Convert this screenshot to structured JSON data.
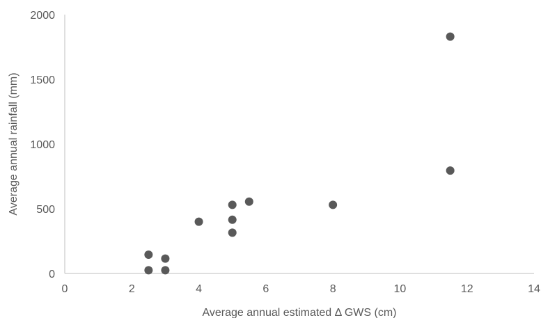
{
  "chart_data": {
    "type": "scatter",
    "title": "",
    "xlabel": "Average annual estimated Δ GWS (cm)",
    "ylabel": "Average annual rainfall (mm)",
    "xlim": [
      0,
      14
    ],
    "ylim": [
      0,
      2000
    ],
    "x_ticks": [
      "0",
      "2",
      "4",
      "6",
      "8",
      "10",
      "12",
      "14"
    ],
    "y_ticks": [
      "0",
      "500",
      "1000",
      "1500",
      "2000"
    ],
    "grid": false,
    "legend": "none",
    "point_color": "#595959",
    "points": [
      {
        "x": 2.5,
        "y": 145
      },
      {
        "x": 2.5,
        "y": 25
      },
      {
        "x": 3.0,
        "y": 115
      },
      {
        "x": 3.0,
        "y": 25
      },
      {
        "x": 4.0,
        "y": 400
      },
      {
        "x": 5.0,
        "y": 530
      },
      {
        "x": 5.0,
        "y": 415
      },
      {
        "x": 5.0,
        "y": 315
      },
      {
        "x": 5.5,
        "y": 555
      },
      {
        "x": 8.0,
        "y": 530
      },
      {
        "x": 11.5,
        "y": 1830
      },
      {
        "x": 11.5,
        "y": 795
      }
    ]
  }
}
